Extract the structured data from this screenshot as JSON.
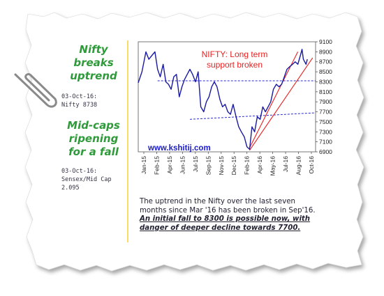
{
  "sidebar": {
    "headline1": [
      "Nifty",
      "breaks",
      "uptrend"
    ],
    "date1": "03-Oct-16:",
    "value1": "Nifty 8738",
    "headline2": [
      "Mid-caps",
      "ripening",
      "for a fall"
    ],
    "date2": "03-Oct-16:",
    "value2": "Sensex/Mid Cap",
    "value2b": "2.095"
  },
  "commentary": {
    "line1": "The uptrend in the Nifty over the last seven",
    "line2": "months since Mar '16 has been broken in Sep'16.",
    "line3": "An initial fall to 8300 is possible now, with",
    "line4": "danger of deeper decline towards 7700."
  },
  "colors": {
    "series": "#1a1aa0",
    "trendline": "#e82020",
    "support": "#2a2acc",
    "headline": "#2e9a3a",
    "watermark": "#1a1ad0"
  },
  "chart_data": {
    "type": "line",
    "annotation": [
      "NIFTY: Long term",
      "support broken"
    ],
    "watermark": "www.kshitij.com",
    "x_tick_labels": [
      "Jan-15",
      "Feb-15",
      "Apr-15",
      "Jun-15",
      "Jul-15",
      "Sep-15",
      "Nov-15",
      "Dec-15",
      "Feb-16",
      "Apr-16",
      "May-16",
      "Jul-16",
      "Aug-16",
      "Oct-16"
    ],
    "y_tick_labels": [
      "6900",
      "7100",
      "7300",
      "7500",
      "7700",
      "7900",
      "8100",
      "8300",
      "8500",
      "8700",
      "8900",
      "9100"
    ],
    "ylim": [
      6900,
      9100
    ],
    "x_range": [
      "2015-01-01",
      "2016-10-31"
    ],
    "grid": false,
    "series": [
      {
        "x": [
          "2015-01-01",
          "2015-01-15",
          "2015-01-30",
          "2015-02-10",
          "2015-02-25",
          "2015-03-05",
          "2015-03-15",
          "2015-03-25",
          "2015-04-05",
          "2015-04-15",
          "2015-04-25",
          "2015-05-05",
          "2015-05-15",
          "2015-05-25",
          "2015-06-05",
          "2015-06-15",
          "2015-06-25",
          "2015-07-05",
          "2015-07-15",
          "2015-07-25",
          "2015-08-05",
          "2015-08-15",
          "2015-08-25",
          "2015-09-05",
          "2015-09-15",
          "2015-09-25",
          "2015-10-05",
          "2015-10-15",
          "2015-10-25",
          "2015-11-05",
          "2015-11-15",
          "2015-11-25",
          "2015-12-05",
          "2015-12-15",
          "2015-12-25",
          "2016-01-05",
          "2016-01-15",
          "2016-01-25",
          "2016-02-05",
          "2016-02-15",
          "2016-02-25",
          "2016-03-05",
          "2016-03-15",
          "2016-03-25",
          "2016-04-05",
          "2016-04-15",
          "2016-04-25",
          "2016-05-05",
          "2016-05-15",
          "2016-05-25",
          "2016-06-05",
          "2016-06-15",
          "2016-06-25",
          "2016-07-05",
          "2016-07-15",
          "2016-07-25",
          "2016-08-05",
          "2016-08-15",
          "2016-08-25",
          "2016-09-05",
          "2016-09-10",
          "2016-09-15",
          "2016-09-20",
          "2016-09-25",
          "2016-09-30"
        ],
        "y": [
          8280,
          8500,
          8900,
          8750,
          8850,
          8900,
          8550,
          8400,
          8650,
          8300,
          8250,
          8150,
          8400,
          8450,
          8000,
          8200,
          8350,
          8450,
          8550,
          8450,
          8300,
          8500,
          7800,
          7700,
          7900,
          8000,
          8200,
          8300,
          8200,
          7950,
          7800,
          7850,
          7700,
          7650,
          7850,
          7600,
          7400,
          7300,
          7200,
          7000,
          6950,
          7400,
          7300,
          7600,
          7550,
          7800,
          7700,
          7800,
          7900,
          8150,
          8250,
          8200,
          8250,
          8400,
          8550,
          8600,
          8650,
          8700,
          8650,
          8850,
          8950,
          8750,
          8700,
          8650,
          8750
        ]
      }
    ],
    "support_lines": [
      {
        "from": [
          "2015-03-15",
          8320
        ],
        "to": [
          "2016-10-31",
          8320
        ]
      },
      {
        "from": [
          "2015-07-15",
          7550
        ],
        "to": [
          "2016-10-31",
          7680
        ]
      }
    ],
    "trend_lines": [
      {
        "from": [
          "2016-02-25",
          6930
        ],
        "to": [
          "2016-10-20",
          8780
        ]
      },
      {
        "from": [
          "2016-02-25",
          6980
        ],
        "to": [
          "2016-08-25",
          8900
        ]
      }
    ]
  }
}
